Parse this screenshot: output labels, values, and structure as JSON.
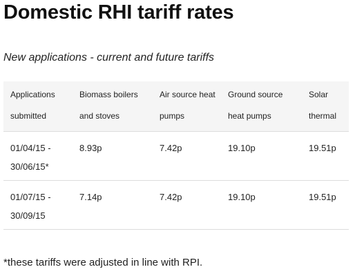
{
  "page": {
    "title": "Domestic RHI tariff rates",
    "subtitle": "New applications - current and future tariffs",
    "footnote": "*these tariffs were adjusted in line with RPI."
  },
  "table": {
    "headers": [
      "Applications submitted",
      "Biomass boilers and stoves",
      "Air source heat pumps",
      "Ground source heat pumps",
      "Solar thermal"
    ],
    "rows": [
      {
        "applications_submitted": "01/04/15 - 30/06/15*",
        "biomass": "8.93p",
        "air_source": "7.42p",
        "ground_source": "19.10p",
        "solar_thermal": "19.51p"
      },
      {
        "applications_submitted": "01/07/15 - 30/09/15",
        "biomass": "7.14p",
        "air_source": "7.42p",
        "ground_source": "19.10p",
        "solar_thermal": "19.51p"
      }
    ]
  }
}
